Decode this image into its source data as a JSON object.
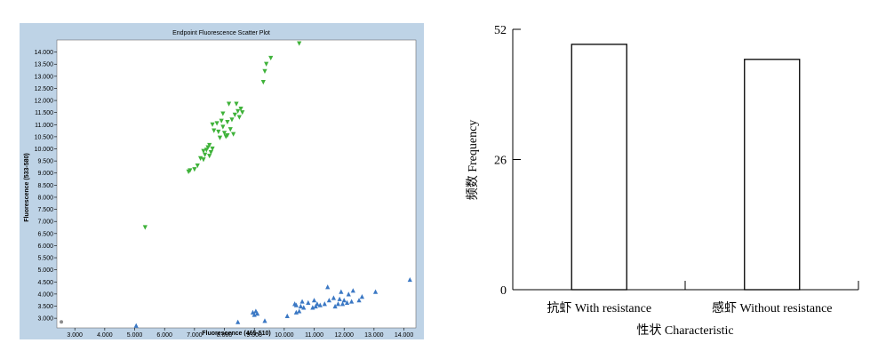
{
  "chart_data": [
    {
      "type": "scatter",
      "title": "Endpoint Fluorescence Scatter Plot",
      "xlabel": "Fluorescence (465-510)",
      "ylabel": "Fluorescence (533-580)",
      "xlim": [
        2.4,
        14.4
      ],
      "ylim": [
        2.6,
        14.5
      ],
      "x_ticks": [
        "3.000",
        "4.000",
        "5.000",
        "6.000",
        "7.000",
        "8.000",
        "9.000",
        "10.000",
        "11.000",
        "12.000",
        "13.000",
        "14.000"
      ],
      "y_ticks": [
        "3.000",
        "3.500",
        "4.000",
        "4.500",
        "5.000",
        "5.500",
        "6.000",
        "6.500",
        "7.000",
        "7.500",
        "8.000",
        "8.500",
        "9.000",
        "9.500",
        "10.000",
        "10.500",
        "11.000",
        "11.500",
        "12.000",
        "12.500",
        "13.000",
        "13.500",
        "14.000"
      ],
      "colors": {
        "panel": "#bed3e6",
        "plot_area": "#ffffff",
        "green": "#3fb23a",
        "blue": "#3b78c4",
        "gray": "#8c8c8c"
      },
      "series": [
        {
          "marker": "triangle-down",
          "color": "#3fb23a",
          "points": [
            [
              10.5,
              14.35
            ],
            [
              9.55,
              13.75
            ],
            [
              9.4,
              13.5
            ],
            [
              9.35,
              13.2
            ],
            [
              9.3,
              12.75
            ],
            [
              8.4,
              11.85
            ],
            [
              8.15,
              11.85
            ],
            [
              8.55,
              11.65
            ],
            [
              8.45,
              11.55
            ],
            [
              8.6,
              11.5
            ],
            [
              8.35,
              11.4
            ],
            [
              8.5,
              11.3
            ],
            [
              7.95,
              11.45
            ],
            [
              8.25,
              11.2
            ],
            [
              8.1,
              11.1
            ],
            [
              7.9,
              11.15
            ],
            [
              7.75,
              11.05
            ],
            [
              7.95,
              10.9
            ],
            [
              8.2,
              10.8
            ],
            [
              8.0,
              10.65
            ],
            [
              7.8,
              10.7
            ],
            [
              8.05,
              10.5
            ],
            [
              7.85,
              10.45
            ],
            [
              8.3,
              10.6
            ],
            [
              8.1,
              10.55
            ],
            [
              7.6,
              11.0
            ],
            [
              7.65,
              10.75
            ],
            [
              7.5,
              10.15
            ],
            [
              7.45,
              10.05
            ],
            [
              7.6,
              10.0
            ],
            [
              7.4,
              9.95
            ],
            [
              7.3,
              9.9
            ],
            [
              7.55,
              9.85
            ],
            [
              7.35,
              9.75
            ],
            [
              7.5,
              9.7
            ],
            [
              7.2,
              9.6
            ],
            [
              7.3,
              9.55
            ],
            [
              7.1,
              9.3
            ],
            [
              7.0,
              9.15
            ],
            [
              6.8,
              9.05
            ],
            [
              6.85,
              9.1
            ],
            [
              5.35,
              6.75
            ]
          ]
        },
        {
          "marker": "triangle-up",
          "color": "#3b78c4",
          "points": [
            [
              14.2,
              4.6
            ],
            [
              13.05,
              4.1
            ],
            [
              12.3,
              4.15
            ],
            [
              12.6,
              3.9
            ],
            [
              12.5,
              3.75
            ],
            [
              12.25,
              3.7
            ],
            [
              12.1,
              3.65
            ],
            [
              12.0,
              3.75
            ],
            [
              11.95,
              3.6
            ],
            [
              11.85,
              3.8
            ],
            [
              11.8,
              3.6
            ],
            [
              11.7,
              3.5
            ],
            [
              11.5,
              3.75
            ],
            [
              11.35,
              3.6
            ],
            [
              11.2,
              3.55
            ],
            [
              11.05,
              3.5
            ],
            [
              10.95,
              3.45
            ],
            [
              11.1,
              3.6
            ],
            [
              11.0,
              3.75
            ],
            [
              10.8,
              3.65
            ],
            [
              10.6,
              3.7
            ],
            [
              10.55,
              3.5
            ],
            [
              10.65,
              3.45
            ],
            [
              10.5,
              3.3
            ],
            [
              10.4,
              3.25
            ],
            [
              10.35,
              3.6
            ],
            [
              10.4,
              3.55
            ],
            [
              11.45,
              4.3
            ],
            [
              11.9,
              4.1
            ],
            [
              12.15,
              4.0
            ],
            [
              11.65,
              3.85
            ],
            [
              9.35,
              2.9
            ],
            [
              9.1,
              3.2
            ],
            [
              9.0,
              3.15
            ],
            [
              9.05,
              3.3
            ],
            [
              8.95,
              3.25
            ],
            [
              8.45,
              2.85
            ],
            [
              10.1,
              3.1
            ],
            [
              5.05,
              2.7
            ]
          ]
        },
        {
          "marker": "circle",
          "color": "#8c8c8c",
          "points": [
            [
              2.55,
              2.85
            ]
          ]
        }
      ]
    },
    {
      "type": "bar",
      "categories": [
        "抗虾 With resistance",
        "感虾 Without resistance"
      ],
      "values": [
        49,
        46
      ],
      "xlabel": "性状 Characteristic",
      "ylabel": "频数 Frequency",
      "ylim": [
        0,
        52
      ],
      "y_ticks": [
        "0",
        "26",
        "52"
      ],
      "colors": {
        "bar_fill": "#ffffff",
        "bar_stroke": "#000000"
      }
    }
  ]
}
